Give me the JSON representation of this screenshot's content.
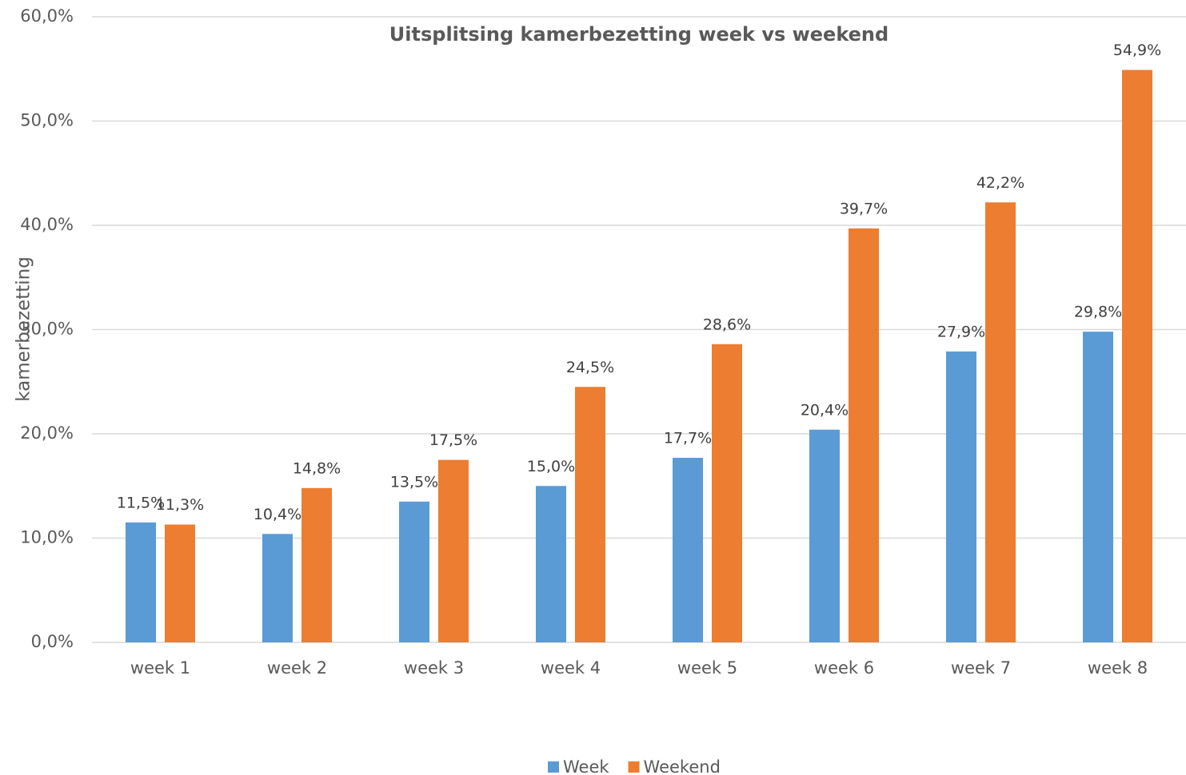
{
  "chart_data": {
    "type": "bar",
    "title": "Uitsplitsing kamerbezetting week vs weekend",
    "y_label": "kamerbezetting",
    "categories": [
      "week 1",
      "week 2",
      "week 3",
      "week 4",
      "week 5",
      "week 6",
      "week 7",
      "week 8"
    ],
    "series": [
      {
        "name": "Week",
        "color": "#5b9bd5",
        "values": [
          11.5,
          10.4,
          13.5,
          15.0,
          17.7,
          20.4,
          27.9,
          29.8
        ],
        "value_labels": [
          "11,5%",
          "10,4%",
          "13,5%",
          "15,0%",
          "17,7%",
          "20,4%",
          "27,9%",
          "29,8%"
        ]
      },
      {
        "name": "Weekend",
        "color": "#ed7d31",
        "values": [
          11.3,
          14.8,
          17.5,
          24.5,
          28.6,
          39.7,
          42.2,
          54.9
        ],
        "value_labels": [
          "11,3%",
          "14,8%",
          "17,5%",
          "24,5%",
          "28,6%",
          "39,7%",
          "42,2%",
          "54,9%"
        ]
      }
    ],
    "ylim": [
      0,
      60
    ],
    "yticks": [
      {
        "value": 0,
        "label": "0,0%"
      },
      {
        "value": 10,
        "label": "10,0%"
      },
      {
        "value": 20,
        "label": "20,0%"
      },
      {
        "value": 30,
        "label": "30,0%"
      },
      {
        "value": 40,
        "label": "40,0%"
      },
      {
        "value": 50,
        "label": "50,0%"
      },
      {
        "value": 60,
        "label": "60,0%"
      }
    ],
    "grid": true,
    "legend": "bottom"
  }
}
